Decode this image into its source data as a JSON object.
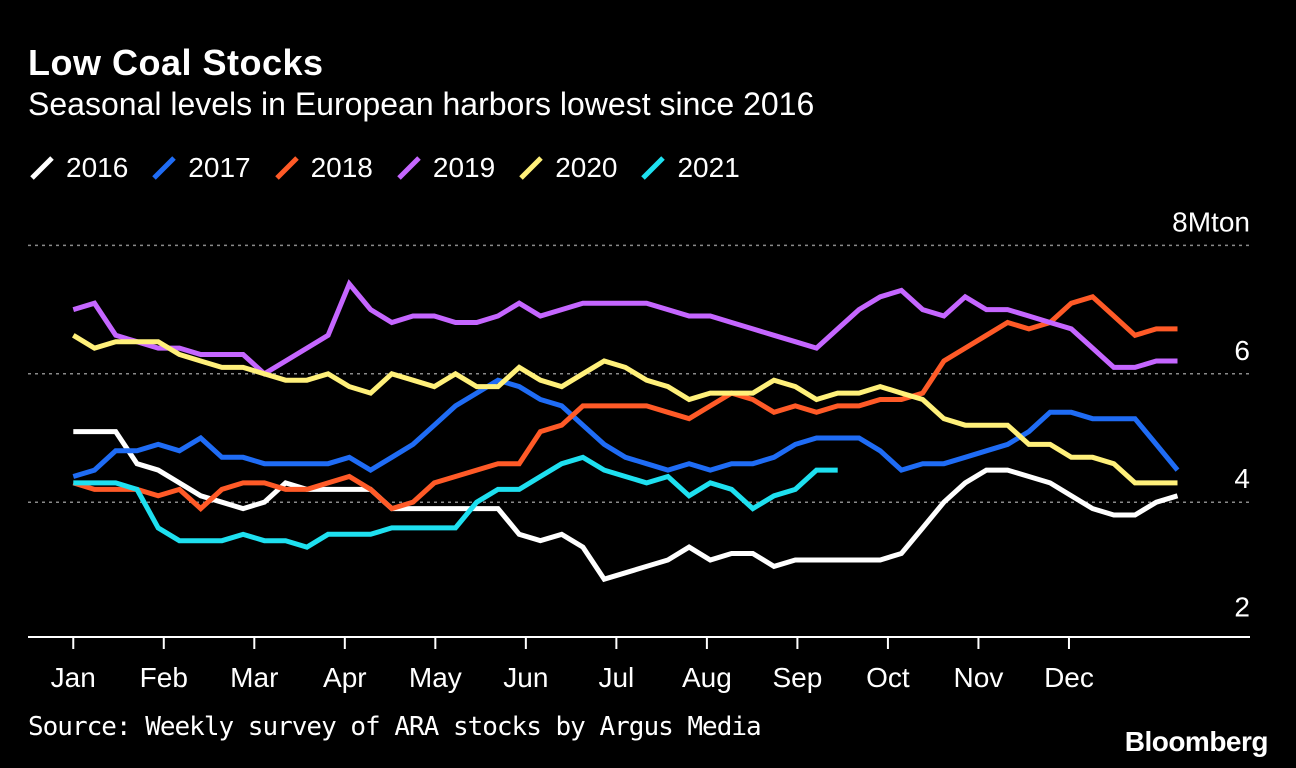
{
  "chart_data": {
    "type": "line",
    "title": "Low Coal Stocks",
    "subtitle": "Seasonal levels in European harbors lowest since 2016",
    "source": "Source: Weekly survey of ARA stocks by Argus Media",
    "brand": "Bloomberg",
    "y_unit": "Mton",
    "ylim": [
      1.9,
      8.1
    ],
    "y_ticks": [
      {
        "value": 8,
        "label": "8Mton"
      },
      {
        "value": 6,
        "label": "6"
      },
      {
        "value": 4,
        "label": "4"
      },
      {
        "value": 2,
        "label": "2"
      }
    ],
    "grid": true,
    "x_range": [
      0,
      13.5
    ],
    "x_ticks": [
      {
        "value": 0.5,
        "label": "Jan"
      },
      {
        "value": 1.5,
        "label": "Feb"
      },
      {
        "value": 2.5,
        "label": "Mar"
      },
      {
        "value": 3.5,
        "label": "Apr"
      },
      {
        "value": 4.5,
        "label": "May"
      },
      {
        "value": 5.5,
        "label": "Jun"
      },
      {
        "value": 6.5,
        "label": "Jul"
      },
      {
        "value": 7.5,
        "label": "Aug"
      },
      {
        "value": 8.5,
        "label": "Sep"
      },
      {
        "value": 9.5,
        "label": "Oct"
      },
      {
        "value": 10.5,
        "label": "Nov"
      },
      {
        "value": 11.5,
        "label": "Dec"
      }
    ],
    "x_start": 0.5,
    "x_step": 0.2346,
    "series": [
      {
        "name": "2016",
        "color": "#ffffff",
        "values": [
          5.1,
          5.1,
          5.1,
          4.6,
          4.5,
          4.3,
          4.1,
          4.0,
          3.9,
          4.0,
          4.3,
          4.2,
          4.2,
          4.2,
          4.2,
          3.9,
          3.9,
          3.9,
          3.9,
          3.9,
          3.9,
          3.5,
          3.4,
          3.5,
          3.3,
          2.8,
          2.9,
          3.0,
          3.1,
          3.3,
          3.1,
          3.2,
          3.2,
          3.0,
          3.1,
          3.1,
          3.1,
          3.1,
          3.1,
          3.2,
          3.6,
          4.0,
          4.3,
          4.5,
          4.5,
          4.4,
          4.3,
          4.1,
          3.9,
          3.8,
          3.8,
          4.0,
          4.1
        ]
      },
      {
        "name": "2017",
        "color": "#1f6cf5",
        "values": [
          4.4,
          4.5,
          4.8,
          4.8,
          4.9,
          4.8,
          5.0,
          4.7,
          4.7,
          4.6,
          4.6,
          4.6,
          4.6,
          4.7,
          4.5,
          4.7,
          4.9,
          5.2,
          5.5,
          5.7,
          5.9,
          5.8,
          5.6,
          5.5,
          5.2,
          4.9,
          4.7,
          4.6,
          4.5,
          4.6,
          4.5,
          4.6,
          4.6,
          4.7,
          4.9,
          5.0,
          5.0,
          5.0,
          4.8,
          4.5,
          4.6,
          4.6,
          4.7,
          4.8,
          4.9,
          5.1,
          5.4,
          5.4,
          5.3,
          5.3,
          5.3,
          4.9,
          4.5
        ]
      },
      {
        "name": "2018",
        "color": "#ff5a27",
        "values": [
          4.3,
          4.2,
          4.2,
          4.2,
          4.1,
          4.2,
          3.9,
          4.2,
          4.3,
          4.3,
          4.2,
          4.2,
          4.3,
          4.4,
          4.2,
          3.9,
          4.0,
          4.3,
          4.4,
          4.5,
          4.6,
          4.6,
          5.1,
          5.2,
          5.5,
          5.5,
          5.5,
          5.5,
          5.4,
          5.3,
          5.5,
          5.7,
          5.6,
          5.4,
          5.5,
          5.4,
          5.5,
          5.5,
          5.6,
          5.6,
          5.7,
          6.2,
          6.4,
          6.6,
          6.8,
          6.7,
          6.8,
          7.1,
          7.2,
          6.9,
          6.6,
          6.7,
          6.7
        ]
      },
      {
        "name": "2019",
        "color": "#c566ff",
        "values": [
          7.0,
          7.1,
          6.6,
          6.5,
          6.4,
          6.4,
          6.3,
          6.3,
          6.3,
          6.0,
          6.2,
          6.4,
          6.6,
          7.4,
          7.0,
          6.8,
          6.9,
          6.9,
          6.8,
          6.8,
          6.9,
          7.1,
          6.9,
          7.0,
          7.1,
          7.1,
          7.1,
          7.1,
          7.0,
          6.9,
          6.9,
          6.8,
          6.7,
          6.6,
          6.5,
          6.4,
          6.7,
          7.0,
          7.2,
          7.3,
          7.0,
          6.9,
          7.2,
          7.0,
          7.0,
          6.9,
          6.8,
          6.7,
          6.4,
          6.1,
          6.1,
          6.2,
          6.2
        ]
      },
      {
        "name": "2020",
        "color": "#fff07a",
        "values": [
          6.6,
          6.4,
          6.5,
          6.5,
          6.5,
          6.3,
          6.2,
          6.1,
          6.1,
          6.0,
          5.9,
          5.9,
          6.0,
          5.8,
          5.7,
          6.0,
          5.9,
          5.8,
          6.0,
          5.8,
          5.8,
          6.1,
          5.9,
          5.8,
          6.0,
          6.2,
          6.1,
          5.9,
          5.8,
          5.6,
          5.7,
          5.7,
          5.7,
          5.9,
          5.8,
          5.6,
          5.7,
          5.7,
          5.8,
          5.7,
          5.6,
          5.3,
          5.2,
          5.2,
          5.2,
          4.9,
          4.9,
          4.7,
          4.7,
          4.6,
          4.3,
          4.3,
          4.3
        ]
      },
      {
        "name": "2021",
        "color": "#1ee0f0",
        "values": [
          4.3,
          4.3,
          4.3,
          4.2,
          3.6,
          3.4,
          3.4,
          3.4,
          3.5,
          3.4,
          3.4,
          3.3,
          3.5,
          3.5,
          3.5,
          3.6,
          3.6,
          3.6,
          3.6,
          4.0,
          4.2,
          4.2,
          4.4,
          4.6,
          4.7,
          4.5,
          4.4,
          4.3,
          4.4,
          4.1,
          4.3,
          4.2,
          3.9,
          4.1,
          4.2,
          4.5,
          4.5
        ]
      }
    ]
  }
}
